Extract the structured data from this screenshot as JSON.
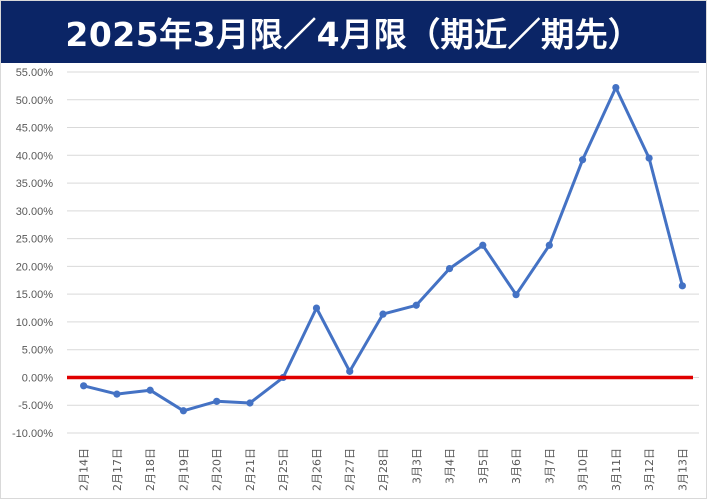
{
  "title": "2025年3月限／4月限（期近／期先）",
  "chart_data": {
    "type": "line",
    "title": "2025年3月限／4月限（期近／期先）",
    "xlabel": "",
    "ylabel": "",
    "ylim": [
      -0.1,
      0.55
    ],
    "ytick_step": 0.05,
    "ytick_labels": [
      "-10.00%",
      "-5.00%",
      "0.00%",
      "5.00%",
      "10.00%",
      "15.00%",
      "20.00%",
      "25.00%",
      "30.00%",
      "35.00%",
      "40.00%",
      "45.00%",
      "50.00%",
      "55.00%"
    ],
    "grid": true,
    "legend": "none",
    "categories": [
      "2月14日",
      "2月17日",
      "2月18日",
      "2月19日",
      "2月20日",
      "2月21日",
      "2月25日",
      "2月26日",
      "2月27日",
      "2月28日",
      "3月3日",
      "3月4日",
      "3月5日",
      "3月6日",
      "3月7日",
      "3月10日",
      "3月11日",
      "3月12日",
      "3月13日"
    ],
    "series": [
      {
        "color": "#4472c4",
        "values": [
          -0.015,
          -0.03,
          -0.023,
          -0.06,
          -0.043,
          -0.046,
          0.0,
          0.125,
          0.011,
          0.114,
          0.13,
          0.196,
          0.238,
          0.149,
          0.238,
          0.392,
          0.522,
          0.395,
          0.165
        ]
      }
    ],
    "reference_line": {
      "value": 0.0,
      "color": "#e00000"
    }
  },
  "colors": {
    "title_bg": "#0b2566",
    "title_text": "#ffffff",
    "grid": "#d9d9d9",
    "axis_text": "#595959"
  }
}
